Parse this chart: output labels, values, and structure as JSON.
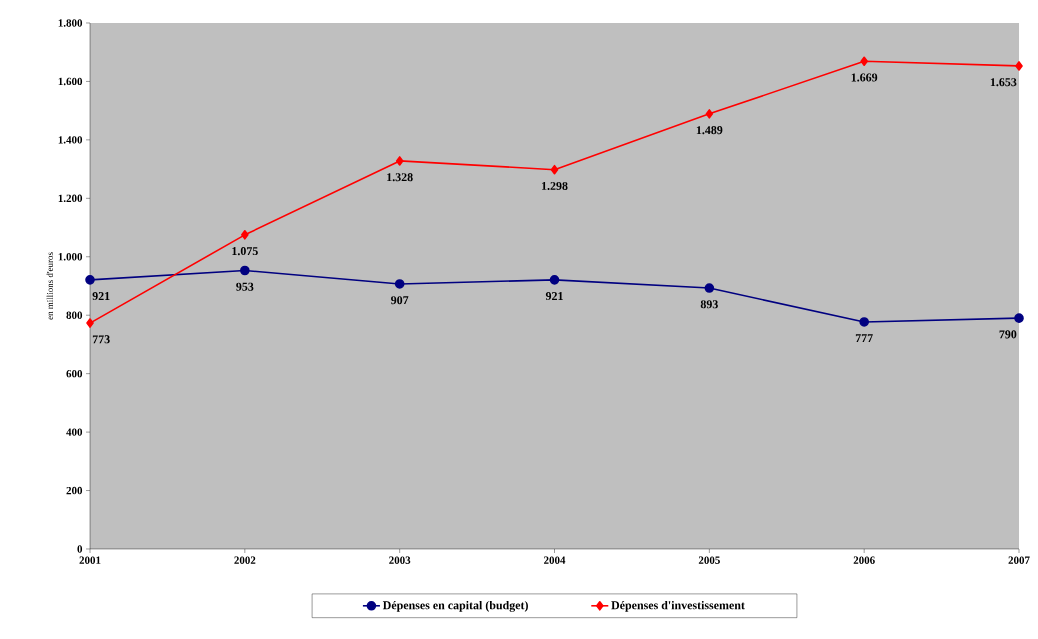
{
  "chart_data": {
    "type": "line",
    "ylabel": "en millions d'euros",
    "x": [
      2001,
      2002,
      2003,
      2004,
      2005,
      2006,
      2007
    ],
    "xlim": [
      2001,
      2007
    ],
    "xticks": [
      2001,
      2002,
      2003,
      2004,
      2005,
      2006,
      2007
    ],
    "ylim": [
      0,
      1800
    ],
    "yticks": [
      0,
      200,
      400,
      600,
      800,
      {
        "value": 1000,
        "label": "1.000"
      },
      {
        "value": 1200,
        "label": "1.200"
      },
      {
        "value": 1400,
        "label": "1.400"
      },
      {
        "value": 1600,
        "label": "1.600"
      },
      {
        "value": 1800,
        "label": "1.800"
      }
    ],
    "series": [
      {
        "name": "Dépenses en capital (budget)",
        "color": "#000080",
        "marker": "circle",
        "values": [
          921,
          953,
          907,
          921,
          893,
          777,
          790
        ],
        "value_labels": [
          "921",
          "953",
          "907",
          "921",
          "893",
          "777",
          "790"
        ]
      },
      {
        "name": "Dépenses d'investissement",
        "color": "#ff0000",
        "marker": "diamond",
        "values": [
          773,
          1075,
          1328,
          1298,
          1489,
          1669,
          1653
        ],
        "value_labels": [
          "773",
          "1.075",
          "1.328",
          "1.298",
          "1.489",
          "1.669",
          "1.653"
        ]
      }
    ],
    "legend": "bottom"
  }
}
